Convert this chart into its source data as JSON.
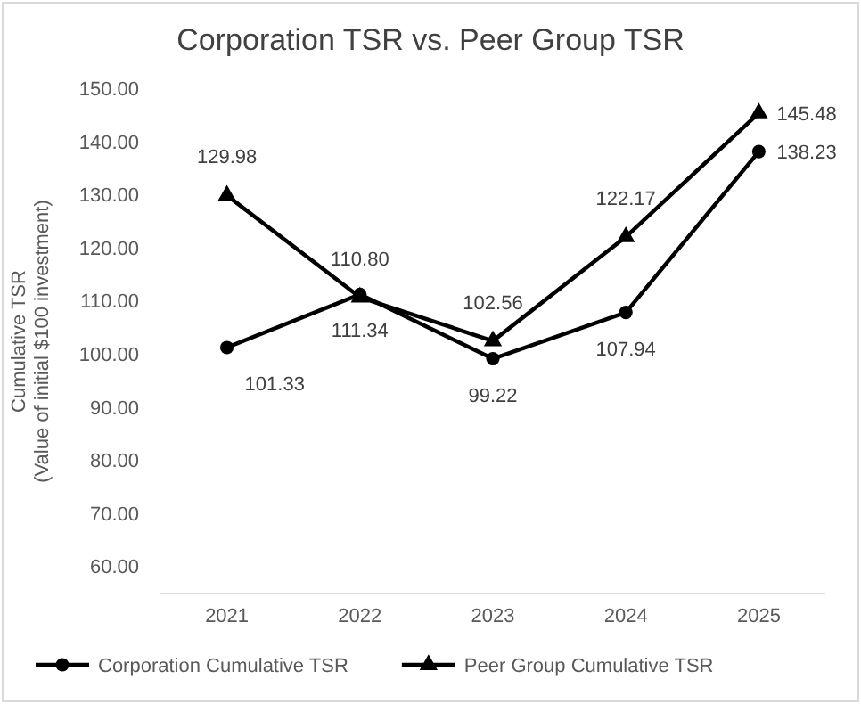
{
  "chart_data": {
    "type": "line",
    "title": "Corporation TSR vs. Peer Group TSR",
    "ylabel": "Cumulative TSR\n(Value of initial $100 investment)",
    "categories": [
      "2021",
      "2022",
      "2023",
      "2024",
      "2025"
    ],
    "series": [
      {
        "name": "Corporation Cumulative TSR",
        "color": "#000000",
        "marker": "circle",
        "values": [
          101.33,
          111.34,
          99.22,
          107.94,
          138.23
        ],
        "value_labels": [
          "101.33",
          "111.34",
          "99.22",
          "107.94",
          "138.23"
        ]
      },
      {
        "name": "Peer Group Cumulative TSR",
        "color": "#000000",
        "marker": "triangle",
        "values": [
          129.98,
          110.8,
          102.56,
          122.17,
          145.48
        ],
        "value_labels": [
          "129.98",
          "110.80",
          "102.56",
          "122.17",
          "145.48"
        ]
      }
    ],
    "ylim": [
      55,
      150
    ],
    "yticks": [
      {
        "value": 60,
        "label": "60.00"
      },
      {
        "value": 70,
        "label": "70.00"
      },
      {
        "value": 80,
        "label": "80.00"
      },
      {
        "value": 90,
        "label": "90.00"
      },
      {
        "value": 100,
        "label": "100.00"
      },
      {
        "value": 110,
        "label": "110.00"
      },
      {
        "value": 120,
        "label": "120.00"
      },
      {
        "value": 130,
        "label": "130.00"
      },
      {
        "value": 140,
        "label": "140.00"
      },
      {
        "value": 150,
        "label": "150.00"
      }
    ],
    "grid": false,
    "legend": "bottom",
    "line_style": "solid"
  }
}
